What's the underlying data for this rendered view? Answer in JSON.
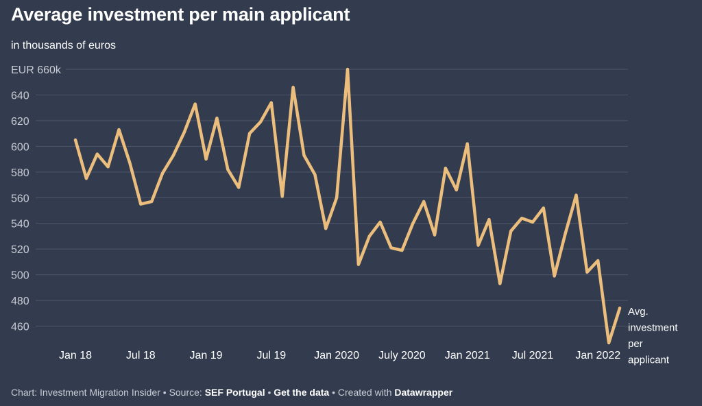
{
  "header": {
    "title": "Average investment per main applicant",
    "subtitle": "in thousands of euros"
  },
  "footer": {
    "chart_by": "Chart: Investment Migration Insider",
    "sep1": " • ",
    "source_prefix": "Source: ",
    "source": "SEF Portugal",
    "sep2": " • ",
    "get_data": "Get the data",
    "sep3": " • ",
    "created_prefix": "Created with ",
    "created_with": "Datawrapper"
  },
  "colors": {
    "background": "#333c4e",
    "line": "#ebbe7d",
    "grid": "#4e5668"
  },
  "chart_data": {
    "type": "line",
    "title": "Average investment per main applicant",
    "subtitle": "in thousands of euros",
    "ylim": [
      440,
      660
    ],
    "yticks": [
      460,
      480,
      500,
      520,
      540,
      560,
      580,
      600,
      620,
      640,
      660
    ],
    "ytick_labels": [
      "460",
      "480",
      "500",
      "520",
      "540",
      "560",
      "580",
      "600",
      "620",
      "640",
      "EUR 660k"
    ],
    "xticks": [
      {
        "index": 0,
        "label": "Jan 18"
      },
      {
        "index": 6,
        "label": "Jul 18"
      },
      {
        "index": 12,
        "label": "Jan 19"
      },
      {
        "index": 18,
        "label": "Jul 19"
      },
      {
        "index": 24,
        "label": "Jan 2020"
      },
      {
        "index": 30,
        "label": "July 2020"
      },
      {
        "index": 36,
        "label": "Jan 2021"
      },
      {
        "index": 42,
        "label": "Jul 2021"
      },
      {
        "index": 48,
        "label": "Jan 2022"
      }
    ],
    "series": [
      {
        "name": "Avg. investment per applicant",
        "label_lines": [
          "Avg.",
          "investment",
          "per",
          "applicant"
        ],
        "values": [
          605,
          575,
          594,
          584,
          613,
          587,
          555,
          557,
          579,
          593,
          611,
          633,
          590,
          622,
          582,
          568,
          610,
          619,
          634,
          561,
          646,
          593,
          578,
          536,
          560,
          660,
          508,
          530,
          541,
          521,
          519,
          540,
          557,
          531,
          583,
          566,
          602,
          523,
          543,
          493,
          534,
          544,
          541,
          552,
          499,
          532,
          562,
          502,
          511,
          447,
          474
        ]
      }
    ]
  }
}
